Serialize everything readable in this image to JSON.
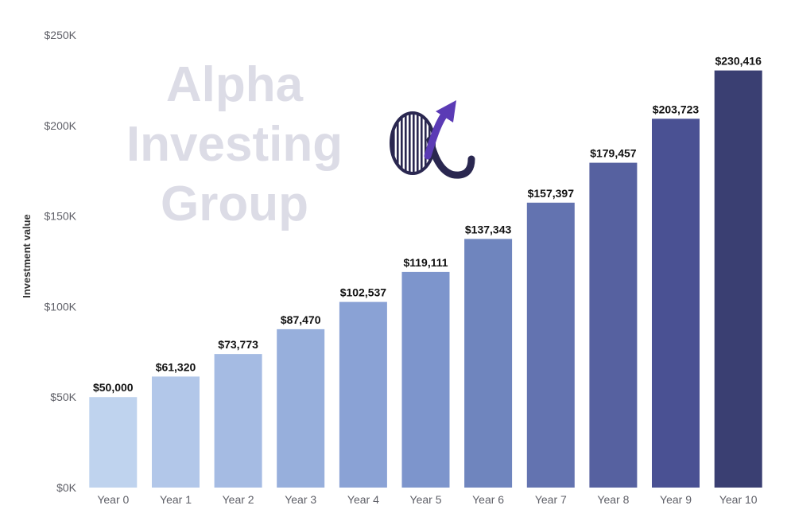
{
  "watermark": {
    "lines": [
      "Alpha",
      "Investing",
      "Group"
    ]
  },
  "logo": {
    "name": "alpha-arrow-logo"
  },
  "colors": {
    "bars": [
      "#bfd3ee",
      "#b2c7e9",
      "#a5bbe3",
      "#97afdc",
      "#8aa2d5",
      "#7d95cc",
      "#6f85be",
      "#6373b0",
      "#5661a0",
      "#4a5193",
      "#3a3f72"
    ],
    "logo_dark": "#2a2750",
    "logo_arrow": "#5b3bb5"
  },
  "chart_data": {
    "type": "bar",
    "categories": [
      "Year 0",
      "Year 1",
      "Year 2",
      "Year 3",
      "Year 4",
      "Year 5",
      "Year 6",
      "Year 7",
      "Year 8",
      "Year 9",
      "Year 10"
    ],
    "values": [
      50000,
      61320,
      73773,
      87470,
      102537,
      119111,
      137343,
      157397,
      179457,
      203723,
      230416
    ],
    "data_labels": [
      "$50,000",
      "$61,320",
      "$73,773",
      "$87,470",
      "$102,537",
      "$119,111",
      "$137,343",
      "$157,397",
      "$179,457",
      "$203,723",
      "$230,416"
    ],
    "ylabel": "Investment value",
    "xlabel": "",
    "title": "",
    "ylim": [
      0,
      250000
    ],
    "yticks": [
      0,
      50000,
      100000,
      150000,
      200000,
      250000
    ],
    "ytick_labels": [
      "$0K",
      "$50K",
      "$100K",
      "$150K",
      "$200K",
      "$250K"
    ],
    "grid": false,
    "legend": "none"
  }
}
